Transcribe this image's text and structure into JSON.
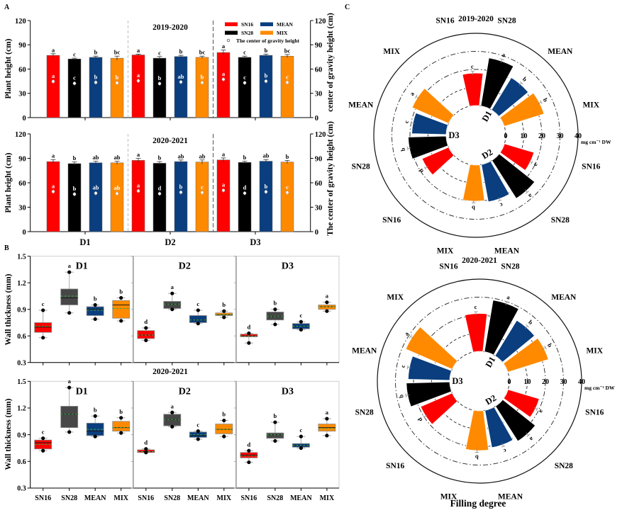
{
  "panels": {
    "A": {
      "label": "A"
    },
    "B": {
      "label": "B"
    },
    "C": {
      "label": "C",
      "xlabel": "Filling degree"
    }
  },
  "colors": {
    "SN16": "#ff0000",
    "SN28": "#000000",
    "MEAN": "#0a3e7e",
    "MIX": "#ff8a00",
    "SN28_box": "#474747",
    "median_line": "#1a1a1a",
    "mean_line": "#3aa845"
  },
  "chart_data": [
    {
      "panel": "A",
      "type": "bar",
      "title": "2019-2020",
      "ylabel": "Plant height (cm)",
      "y2label": "center of gravity height (cm)",
      "ylim": [
        0,
        120
      ],
      "yticks": [
        "0",
        "30",
        "60",
        "90",
        "120"
      ],
      "y2lim": [
        0,
        120
      ],
      "y2ticks": [
        "0",
        "30",
        "60",
        "90",
        "120"
      ],
      "groups": [
        "D1",
        "D2",
        "D3"
      ],
      "legend": {
        "position": "top-right",
        "items": [
          "SN16",
          "MEAN",
          "SN28",
          "MIX"
        ],
        "gravity_label": "The center of gravity height"
      },
      "series": [
        {
          "name": "SN16",
          "height": [
            77,
            77.5,
            80.5
          ],
          "height_err": [
            2,
            1,
            3
          ],
          "height_letters": [
            "a",
            "a",
            "a"
          ],
          "gravity": [
            44.7,
            45.5,
            47.3
          ],
          "gravity_letters": [
            "a",
            "a",
            "a"
          ]
        },
        {
          "name": "SN28",
          "height": [
            72.5,
            73.5,
            74.5
          ],
          "height_err": [
            1,
            2,
            1.5
          ],
          "height_letters": [
            "c",
            "c",
            "c"
          ],
          "gravity": [
            42.3,
            42,
            43
          ],
          "gravity_letters": [
            "c",
            "b",
            "c"
          ]
        },
        {
          "name": "MEAN",
          "height": [
            74.5,
            75.5,
            77
          ],
          "height_err": [
            1.5,
            1.5,
            1.5
          ],
          "height_letters": [
            "b",
            "b",
            "b"
          ],
          "gravity": [
            43.5,
            44,
            45
          ],
          "gravity_letters": [
            "b",
            "ab",
            "b"
          ]
        },
        {
          "name": "MIX",
          "height": [
            73.5,
            74.5,
            76
          ],
          "height_err": [
            2.5,
            1.5,
            2
          ],
          "height_letters": [
            "bc",
            "bc",
            "bc"
          ],
          "gravity": [
            42.9,
            43.2,
            43.5
          ],
          "gravity_letters": [
            "b",
            "b",
            "c"
          ]
        }
      ]
    },
    {
      "panel": "A",
      "type": "bar",
      "title": "2020-2021",
      "ylabel": "Plant height (cm)",
      "y2label": "The center of gravity height (cm)",
      "ylim": [
        0,
        120
      ],
      "yticks": [
        "0",
        "30",
        "60",
        "90",
        "120"
      ],
      "y2lim": [
        0,
        120
      ],
      "y2ticks": [
        "0",
        "30",
        "60",
        "90",
        "120"
      ],
      "groups": [
        "D1",
        "D2",
        "D3"
      ],
      "xticklabels": [
        "D1",
        "D2",
        "D3"
      ],
      "series": [
        {
          "name": "SN16",
          "height": [
            86,
            87.5,
            88
          ],
          "height_err": [
            2.5,
            2.5,
            2.5
          ],
          "height_letters": [
            "a",
            "a",
            "a"
          ],
          "gravity": [
            49.2,
            50,
            50.7
          ],
          "gravity_letters": [
            "a",
            "a",
            "a"
          ]
        },
        {
          "name": "SN28",
          "height": [
            83.5,
            84,
            85
          ],
          "height_err": [
            2,
            2,
            1.5
          ],
          "height_letters": [
            "b",
            "b",
            "b"
          ],
          "gravity": [
            46,
            46.6,
            47.2
          ],
          "gravity_letters": [
            "b",
            "d",
            "d"
          ]
        },
        {
          "name": "MEAN",
          "height": [
            84.5,
            86,
            86.5
          ],
          "height_err": [
            2,
            2,
            2
          ],
          "height_letters": [
            "ab",
            "ab",
            "ab"
          ],
          "gravity": [
            47.2,
            48.3,
            48.9
          ],
          "gravity_letters": [
            "ab",
            "b",
            "b"
          ]
        },
        {
          "name": "MIX",
          "height": [
            84.5,
            85.5,
            85.5
          ],
          "height_err": [
            2,
            2.5,
            2
          ],
          "height_letters": [
            "ab",
            "ab",
            "b"
          ],
          "gravity": [
            46.8,
            48,
            48
          ],
          "gravity_letters": [
            "ab",
            "c",
            "c"
          ]
        }
      ]
    },
    {
      "panel": "B",
      "type": "box",
      "title": "",
      "ylabel": "Wall thickness (mm)",
      "ylim": [
        0.3,
        1.5
      ],
      "yticks": [
        "0.3",
        "0.6",
        "0.9",
        "1.2",
        "1.5"
      ],
      "cultivars": [
        "SN16",
        "SN28",
        "MEAN",
        "MIX"
      ],
      "groups": [
        {
          "name": "D1",
          "boxes": [
            {
              "cultivar": "SN16",
              "min": 0.58,
              "q1": 0.64,
              "median": 0.7,
              "q3": 0.75,
              "max": 0.89,
              "mean": 0.71,
              "letter": "c"
            },
            {
              "cultivar": "SN28",
              "min": 0.86,
              "q1": 0.95,
              "median": 1.03,
              "q3": 1.13,
              "max": 1.32,
              "mean": 1.05,
              "letter": "a"
            },
            {
              "cultivar": "MEAN",
              "min": 0.79,
              "q1": 0.83,
              "median": 0.9,
              "q3": 0.93,
              "max": 0.95,
              "mean": 0.89,
              "letter": "b"
            },
            {
              "cultivar": "MIX",
              "min": 0.77,
              "q1": 0.8,
              "median": 0.95,
              "q3": 1.0,
              "max": 1.03,
              "mean": 0.91,
              "letter": "b"
            }
          ]
        },
        {
          "name": "D2",
          "boxes": [
            {
              "cultivar": "SN16",
              "min": 0.55,
              "q1": 0.57,
              "median": 0.61,
              "q3": 0.66,
              "max": 0.69,
              "mean": 0.61,
              "letter": "d"
            },
            {
              "cultivar": "SN28",
              "min": 0.9,
              "q1": 0.91,
              "median": 0.96,
              "q3": 0.99,
              "max": 1.08,
              "mean": 0.96,
              "letter": "a"
            },
            {
              "cultivar": "MEAN",
              "min": 0.74,
              "q1": 0.75,
              "median": 0.78,
              "q3": 0.83,
              "max": 0.89,
              "mean": 0.78,
              "letter": "c"
            },
            {
              "cultivar": "MIX",
              "min": 0.81,
              "q1": 0.83,
              "median": 0.84,
              "q3": 0.86,
              "max": 0.88,
              "mean": 0.84,
              "letter": "b"
            }
          ]
        },
        {
          "name": "D3",
          "boxes": [
            {
              "cultivar": "SN16",
              "min": 0.52,
              "q1": 0.59,
              "median": 0.6,
              "q3": 0.62,
              "max": 0.63,
              "mean": 0.6,
              "letter": "d"
            },
            {
              "cultivar": "SN28",
              "min": 0.73,
              "q1": 0.78,
              "median": 0.82,
              "q3": 0.87,
              "max": 0.9,
              "mean": 0.82,
              "letter": "b"
            },
            {
              "cultivar": "MEAN",
              "min": 0.67,
              "q1": 0.68,
              "median": 0.71,
              "q3": 0.74,
              "max": 0.76,
              "mean": 0.71,
              "letter": "c"
            },
            {
              "cultivar": "MIX",
              "min": 0.88,
              "q1": 0.9,
              "median": 0.93,
              "q3": 0.95,
              "max": 0.98,
              "mean": 0.93,
              "letter": "a"
            }
          ]
        }
      ]
    },
    {
      "panel": "B",
      "type": "box",
      "title": "2020-2021",
      "ylabel": "Wall thickness (mm)",
      "ylim": [
        0.3,
        1.5
      ],
      "yticks": [
        "0.3",
        "0.6",
        "0.9",
        "1.2",
        "1.5"
      ],
      "cultivars": [
        "SN16",
        "SN28",
        "MEAN",
        "MIX"
      ],
      "xticklabels": [
        "SN16",
        "SN28",
        "MEAN",
        "MIX"
      ],
      "groups": [
        {
          "name": "D1",
          "boxes": [
            {
              "cultivar": "SN16",
              "min": 0.72,
              "q1": 0.74,
              "median": 0.81,
              "q3": 0.84,
              "max": 0.86,
              "mean": 0.79,
              "letter": "c"
            },
            {
              "cultivar": "SN28",
              "min": 0.93,
              "q1": 0.98,
              "median": 1.13,
              "q3": 1.22,
              "max": 1.43,
              "mean": 1.13,
              "letter": "a"
            },
            {
              "cultivar": "MEAN",
              "min": 0.88,
              "q1": 0.89,
              "median": 0.94,
              "q3": 1.03,
              "max": 1.11,
              "mean": 0.96,
              "letter": "b"
            },
            {
              "cultivar": "MIX",
              "min": 0.92,
              "q1": 0.94,
              "median": 0.98,
              "q3": 1.05,
              "max": 1.09,
              "mean": 0.98,
              "letter": "b"
            }
          ]
        },
        {
          "name": "D2",
          "boxes": [
            {
              "cultivar": "SN16",
              "min": 0.7,
              "q1": 0.7,
              "median": 0.71,
              "q3": 0.73,
              "max": 0.74,
              "mean": 0.71,
              "letter": "d"
            },
            {
              "cultivar": "SN28",
              "min": 0.99,
              "q1": 1.0,
              "median": 1.07,
              "q3": 1.13,
              "max": 1.15,
              "mean": 1.07,
              "letter": "a"
            },
            {
              "cultivar": "MEAN",
              "min": 0.85,
              "q1": 0.87,
              "median": 0.89,
              "q3": 0.93,
              "max": 0.94,
              "mean": 0.9,
              "letter": "c"
            },
            {
              "cultivar": "MIX",
              "min": 0.88,
              "q1": 0.91,
              "median": 0.96,
              "q3": 1.02,
              "max": 1.06,
              "mean": 0.96,
              "letter": "b"
            }
          ]
        },
        {
          "name": "D3",
          "boxes": [
            {
              "cultivar": "SN16",
              "min": 0.59,
              "q1": 0.64,
              "median": 0.67,
              "q3": 0.7,
              "max": 0.72,
              "mean": 0.66,
              "letter": "d"
            },
            {
              "cultivar": "SN28",
              "min": 0.83,
              "q1": 0.86,
              "median": 0.9,
              "q3": 0.92,
              "max": 1.04,
              "mean": 0.9,
              "letter": "b"
            },
            {
              "cultivar": "MEAN",
              "min": 0.75,
              "q1": 0.76,
              "median": 0.78,
              "q3": 0.8,
              "max": 0.88,
              "mean": 0.78,
              "letter": "c"
            },
            {
              "cultivar": "MIX",
              "min": 0.89,
              "q1": 0.94,
              "median": 0.98,
              "q3": 1.02,
              "max": 1.08,
              "mean": 0.97,
              "letter": "a"
            }
          ]
        }
      ]
    },
    {
      "panel": "C",
      "type": "radial_bar",
      "title": "2019-2020",
      "rlim": [
        0,
        40
      ],
      "rticks": [
        "0",
        "10",
        "20",
        "30",
        "40"
      ],
      "runit": "mg cm⁻¹ DW",
      "cultivars": [
        "SN16",
        "SN28",
        "MEAN",
        "MIX"
      ],
      "category_labels": [
        "SN16",
        "SN28",
        "MEAN",
        "MIX",
        "SN16",
        "SN28",
        "MEAN",
        "MIX",
        "SN16",
        "SN28",
        "MEAN",
        "MIX"
      ],
      "groups": [
        {
          "name": "D1",
          "values": [
            18,
            27,
            21,
            23
          ],
          "err": [
            1,
            1,
            1,
            1
          ],
          "letters": [
            "c",
            "a",
            "b",
            "b"
          ]
        },
        {
          "name": "D2",
          "values": [
            17,
            25,
            21,
            20
          ],
          "err": [
            1,
            1,
            1,
            1
          ],
          "letters": [
            "a",
            "a",
            "c",
            "b"
          ]
        },
        {
          "name": "D3",
          "values": [
            16,
            21,
            19,
            22
          ],
          "err": [
            1,
            1,
            1,
            1
          ],
          "letters": [
            "d",
            "b",
            "c",
            "a"
          ]
        }
      ]
    },
    {
      "panel": "C",
      "type": "radial_bar",
      "title": "2020-2021",
      "rlim": [
        0,
        40
      ],
      "rticks": [
        "0",
        "10",
        "20",
        "30",
        "40"
      ],
      "runit": "mg cm⁻¹ DW",
      "cultivars": [
        "SN16",
        "SN28",
        "MEAN",
        "MIX"
      ],
      "category_labels": [
        "SN16",
        "SN28",
        "MEAN",
        "MIX",
        "SN16",
        "SN28",
        "MEAN",
        "MIX",
        "SN16",
        "SN28",
        "MEAN",
        "MIX"
      ],
      "groups": [
        {
          "name": "D1",
          "values": [
            21,
            29,
            23,
            23.5
          ],
          "err": [
            1,
            1,
            1,
            1
          ],
          "letters": [
            "c",
            "a",
            "b",
            "b"
          ]
        },
        {
          "name": "D2",
          "values": [
            18,
            23,
            21,
            22
          ],
          "err": [
            1,
            1,
            1,
            1
          ],
          "letters": [
            "a",
            "a",
            "c",
            "b"
          ]
        },
        {
          "name": "D3",
          "values": [
            19,
            24,
            23,
            28
          ],
          "err": [
            1,
            1,
            1,
            1
          ],
          "letters": [
            "d",
            "b",
            "c",
            "a"
          ]
        }
      ]
    }
  ]
}
